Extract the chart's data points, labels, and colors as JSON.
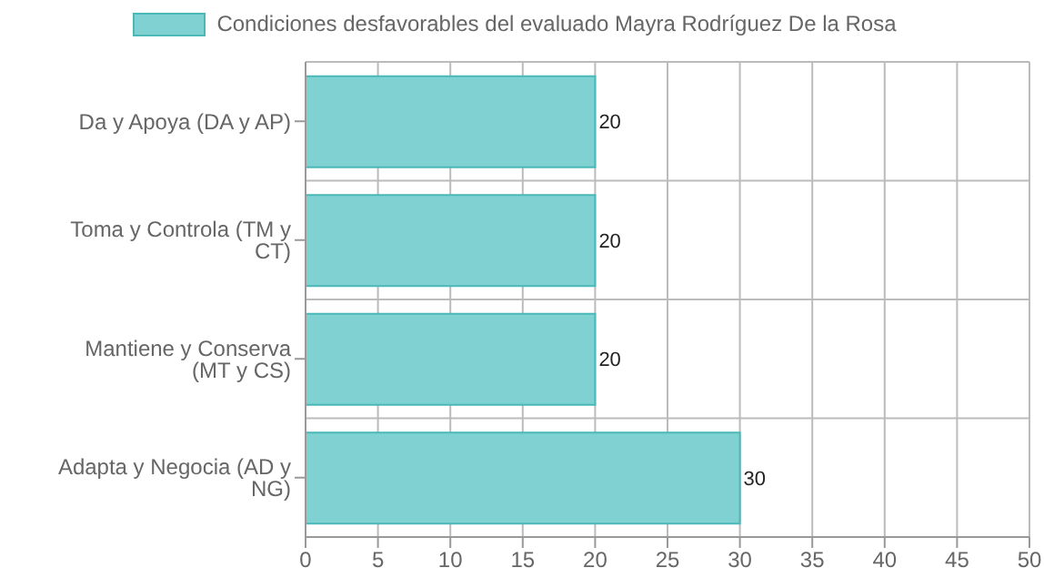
{
  "chart_data": {
    "type": "bar",
    "orientation": "horizontal",
    "categories": [
      "Da y Apoya (DA y AP)",
      "Toma y Controla (TM y CT)",
      "Mantiene y Conserva (MT y CS)",
      "Adapta y Negocia (AD y NG)"
    ],
    "series": [
      {
        "name": "Condiciones desfavorables del evaluado Mayra Rodríguez De la Rosa",
        "color": "#80d1d1",
        "values": [
          20,
          20,
          20,
          30
        ]
      }
    ],
    "xlim": [
      0,
      50
    ],
    "xticks": [
      0,
      5,
      10,
      15,
      20,
      25,
      30,
      35,
      40,
      45,
      50
    ],
    "grid": true,
    "legend": "top",
    "data_labels": true
  }
}
